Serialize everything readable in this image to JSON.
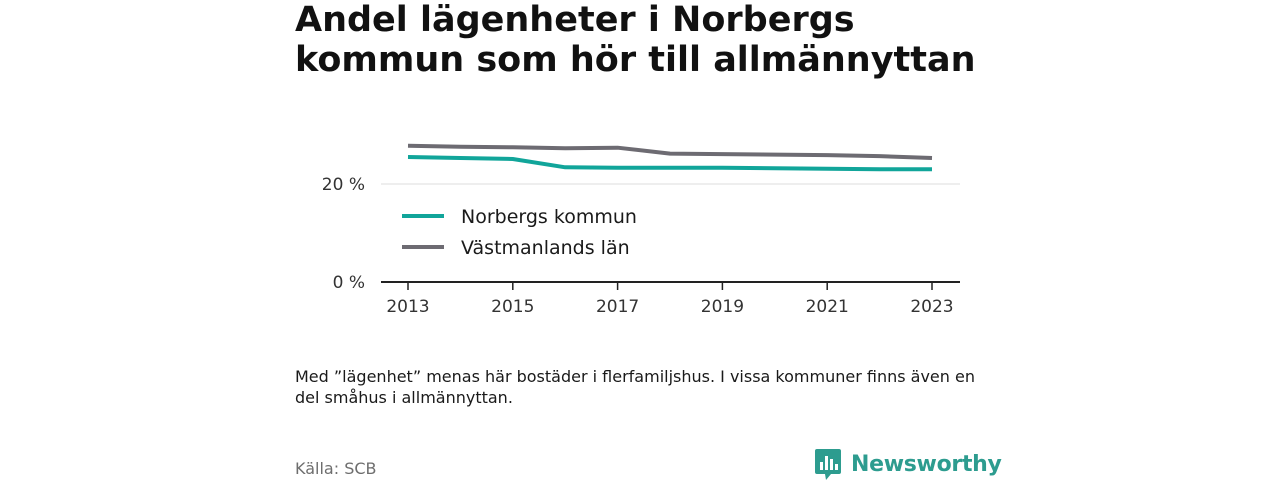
{
  "title": "Andel lägenheter i Norbergs kommun som hör till allmännyttan",
  "note": "Med ”lägenhet” menas här bostäder i flerfamiljshus. I vissa kommuner finns även en del småhus i allmännyttan.",
  "source": "Källa: SCB",
  "brand": {
    "name": "Newsworthy",
    "icon": "newsworthy-logo-icon",
    "color": "#2d9c8f"
  },
  "chart_data": {
    "type": "line",
    "title": "Andel lägenheter i Norbergs kommun som hör till allmännyttan",
    "xlabel": "",
    "ylabel": "",
    "x": [
      2013,
      2014,
      2015,
      2016,
      2017,
      2018,
      2019,
      2020,
      2021,
      2022,
      2023
    ],
    "ylim": [
      0,
      30
    ],
    "yticks": [
      0,
      20
    ],
    "ytick_labels": [
      "0 %",
      "20 %"
    ],
    "xticks": [
      2013,
      2015,
      2017,
      2019,
      2021,
      2023
    ],
    "xtick_labels": [
      "2013",
      "2015",
      "2017",
      "2019",
      "2021",
      "2023"
    ],
    "grid": true,
    "legend_position": "left",
    "series": [
      {
        "name": "Norbergs kommun",
        "color": "#11a59a",
        "values": [
          25.5,
          25.3,
          25.1,
          23.4,
          23.3,
          23.3,
          23.3,
          23.2,
          23.1,
          23.0,
          23.0
        ]
      },
      {
        "name": "Västmanlands län",
        "color": "#6d6b72",
        "values": [
          27.8,
          27.6,
          27.5,
          27.3,
          27.4,
          26.2,
          26.1,
          26.0,
          25.9,
          25.7,
          25.3
        ]
      }
    ]
  }
}
